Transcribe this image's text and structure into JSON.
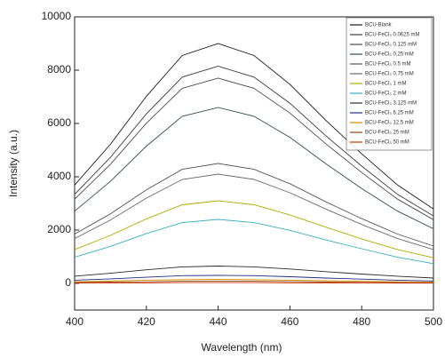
{
  "chart_data": {
    "type": "line",
    "x_label": "Wavelength (nm)",
    "y_label": "Intensity (a.u.)",
    "x": [
      400,
      410,
      420,
      430,
      440,
      450,
      460,
      470,
      480,
      490,
      500
    ],
    "xlim": [
      400,
      500
    ],
    "xticks": [
      400,
      420,
      440,
      460,
      480,
      500
    ],
    "ylim": [
      -1000,
      10000
    ],
    "yticks": [
      0,
      2000,
      4000,
      6000,
      8000,
      10000
    ],
    "legend": "upper right",
    "series": [
      {
        "name": "BCU-Blank",
        "color": "#1a1a1a",
        "values": [
          3690,
          5220,
          7020,
          8550,
          9000,
          8550,
          7470,
          6120,
          4860,
          3690,
          2790
        ]
      },
      {
        "name": "BCU-FeCl₃ 0.0625 mM",
        "color": "#3a3a3a",
        "values": [
          3340,
          4730,
          6360,
          7740,
          8150,
          7740,
          6760,
          5540,
          4400,
          3340,
          2530
        ]
      },
      {
        "name": "BCU-FeCl₃ 0.125 mM",
        "color": "#4a4a5a",
        "values": [
          3160,
          4470,
          6010,
          7320,
          7700,
          7320,
          6390,
          5240,
          4160,
          3160,
          2390
        ]
      },
      {
        "name": "BCU-FeCl₃ 0.25 mM",
        "color": "#2f4f4f",
        "values": [
          2710,
          3830,
          5150,
          6270,
          6600,
          6270,
          5480,
          4490,
          3560,
          2710,
          2050
        ]
      },
      {
        "name": "BCU-FeCl₃ 0.5 mM",
        "color": "#555555",
        "values": [
          1850,
          2610,
          3510,
          4280,
          4500,
          4280,
          3740,
          3060,
          2430,
          1850,
          1400
        ]
      },
      {
        "name": "BCU-FeCl₃ 0.75 mM",
        "color": "#6a6a6a",
        "values": [
          1680,
          2380,
          3200,
          3900,
          4100,
          3900,
          3400,
          2790,
          2210,
          1680,
          1270
        ]
      },
      {
        "name": "BCU-FeCl₃ 1 mM",
        "color": "#b5a800",
        "values": [
          1270,
          1800,
          2420,
          2950,
          3100,
          2950,
          2570,
          2110,
          1670,
          1270,
          960
        ]
      },
      {
        "name": "BCU-FeCl₃ 2 mM",
        "color": "#3aaec0",
        "values": [
          980,
          1390,
          1870,
          2280,
          2400,
          2280,
          1990,
          1630,
          1300,
          980,
          740
        ]
      },
      {
        "name": "BCU-FeCl₃ 3.125 mM",
        "color": "#2a2a2a",
        "values": [
          270,
          380,
          510,
          620,
          650,
          620,
          540,
          440,
          350,
          270,
          200
        ]
      },
      {
        "name": "BCU-FeCl₃ 6.25 mM",
        "color": "#1f2f7a",
        "values": [
          120,
          170,
          230,
          290,
          300,
          290,
          250,
          200,
          160,
          120,
          90
        ]
      },
      {
        "name": "BCU-FeCl₃ 12.5 mM",
        "color": "#d98a00",
        "values": [
          60,
          90,
          120,
          140,
          150,
          140,
          120,
          100,
          80,
          60,
          50
        ]
      },
      {
        "name": "BCU-FeCl₃ 25 mM",
        "color": "#8b4513",
        "values": [
          30,
          50,
          60,
          80,
          80,
          80,
          70,
          50,
          40,
          30,
          20
        ]
      },
      {
        "name": "BCU-FeCl₃ 50 mM",
        "color": "#cc3300",
        "values": [
          10,
          20,
          20,
          30,
          30,
          30,
          20,
          20,
          20,
          10,
          10
        ]
      }
    ]
  }
}
